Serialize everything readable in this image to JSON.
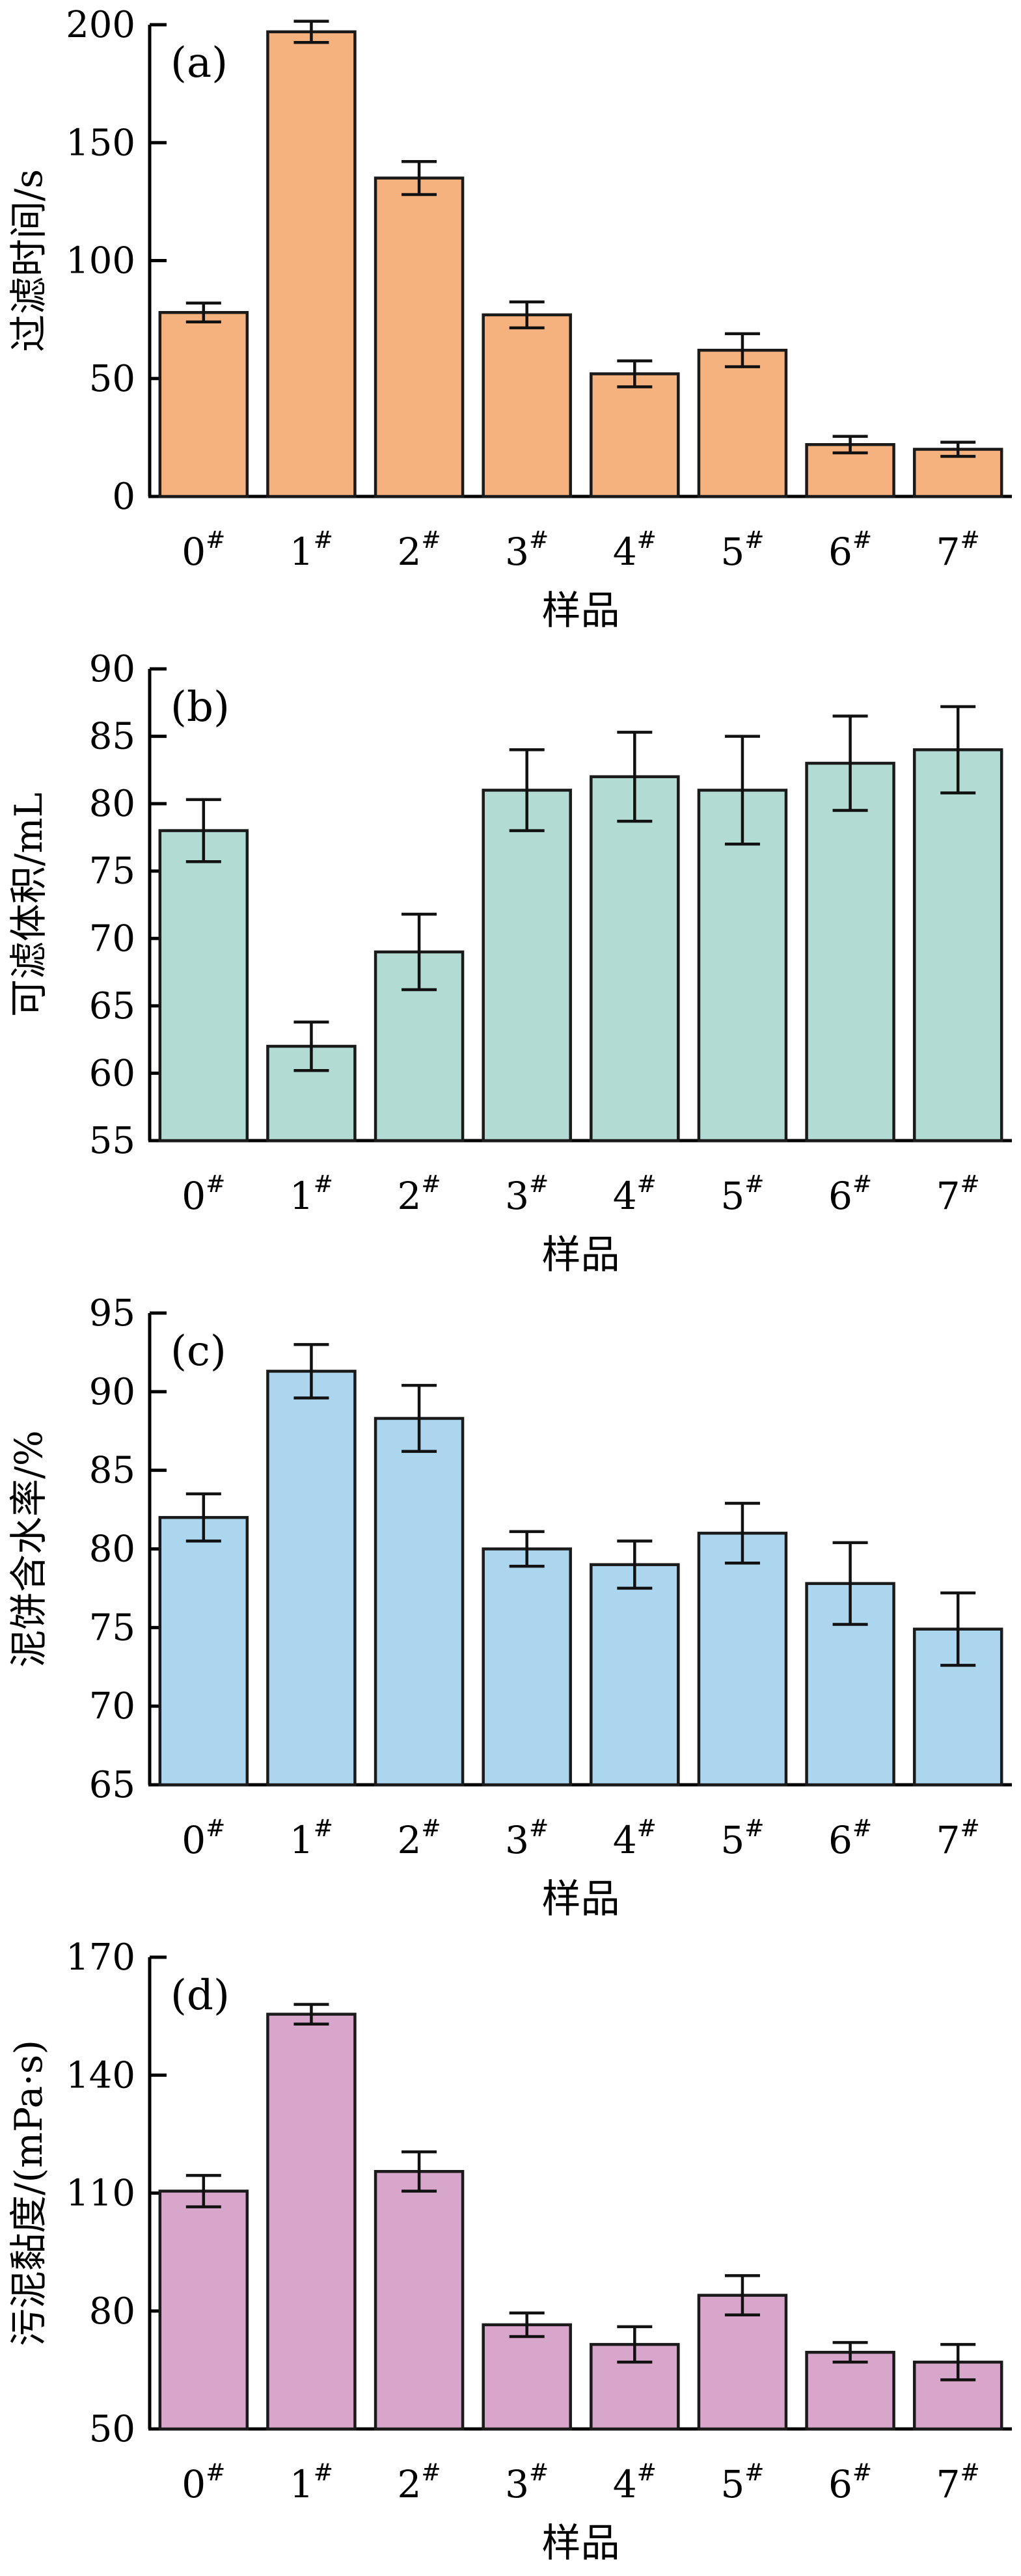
{
  "figure_name": "sludge-dewatering-four-panel-bar-figure",
  "xlabel": "样品",
  "category_suffix": "#",
  "categories": [
    "0",
    "1",
    "2",
    "3",
    "4",
    "5",
    "6",
    "7"
  ],
  "axis_color": "#000000",
  "bar_edge_color": "#1a1a1a",
  "chart_data": [
    {
      "type": "bar",
      "panel_label": "(a)",
      "ylabel": "过滤时间/s",
      "xlabel": "样品",
      "categories": [
        "0#",
        "1#",
        "2#",
        "3#",
        "4#",
        "5#",
        "6#",
        "7#"
      ],
      "values": [
        78,
        197,
        135,
        77,
        52,
        62,
        22,
        20
      ],
      "errors": [
        4,
        4.5,
        7,
        5.5,
        5.5,
        7,
        3.5,
        3
      ],
      "ylim": [
        0,
        200
      ],
      "yticks": [
        0,
        50,
        100,
        150,
        200
      ],
      "bar_fill": "#F6B27E",
      "legend": "none",
      "grid": "off"
    },
    {
      "type": "bar",
      "panel_label": "(b)",
      "ylabel": "可滤体积/mL",
      "xlabel": "样品",
      "categories": [
        "0#",
        "1#",
        "2#",
        "3#",
        "4#",
        "5#",
        "6#",
        "7#"
      ],
      "values": [
        78,
        62,
        69,
        81,
        82,
        81,
        83,
        84
      ],
      "errors": [
        2.3,
        1.8,
        2.8,
        3,
        3.3,
        4,
        3.5,
        3.2
      ],
      "ylim": [
        55,
        90
      ],
      "yticks": [
        55,
        60,
        65,
        70,
        75,
        80,
        85,
        90
      ],
      "bar_fill": "#B1DBD3",
      "legend": "none",
      "grid": "off"
    },
    {
      "type": "bar",
      "panel_label": "(c)",
      "ylabel": "泥饼含水率/%",
      "xlabel": "样品",
      "categories": [
        "0#",
        "1#",
        "2#",
        "3#",
        "4#",
        "5#",
        "6#",
        "7#"
      ],
      "values": [
        82,
        91.3,
        88.3,
        80,
        79,
        81,
        77.8,
        74.9
      ],
      "errors": [
        1.5,
        1.7,
        2.1,
        1.1,
        1.5,
        1.9,
        2.6,
        2.3
      ],
      "ylim": [
        65,
        95
      ],
      "yticks": [
        65,
        70,
        75,
        80,
        85,
        90,
        95
      ],
      "bar_fill": "#ACD5EE",
      "legend": "none",
      "grid": "off"
    },
    {
      "type": "bar",
      "panel_label": "(d)",
      "ylabel": "污泥黏度/(mPa·s)",
      "xlabel": "样品",
      "categories": [
        "0#",
        "1#",
        "2#",
        "3#",
        "4#",
        "5#",
        "6#",
        "7#"
      ],
      "values": [
        110.5,
        155.5,
        115.5,
        76.5,
        71.5,
        84,
        69.5,
        67
      ],
      "errors": [
        4,
        2.5,
        5,
        3,
        4.5,
        5,
        2.5,
        4.5
      ],
      "ylim": [
        50,
        170
      ],
      "yticks": [
        50,
        80,
        110,
        140,
        170
      ],
      "bar_fill": "#D8A5CB",
      "legend": "none",
      "grid": "off"
    }
  ]
}
